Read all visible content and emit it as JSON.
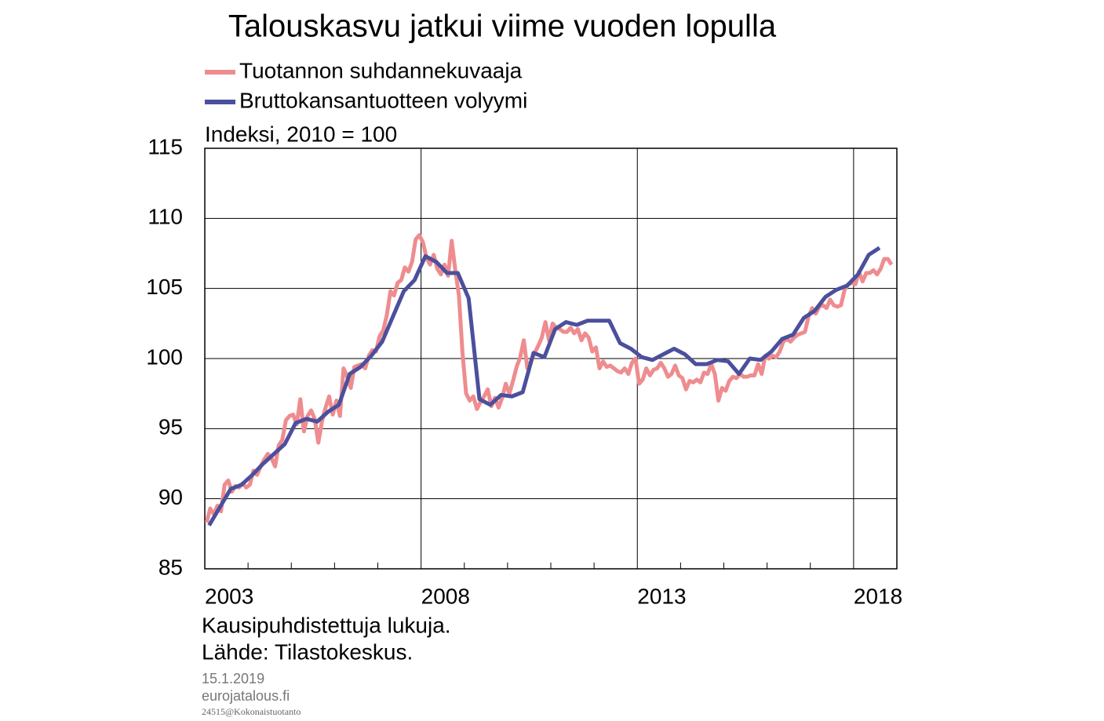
{
  "chart_data": {
    "type": "line",
    "title": "Talouskasvu jatkui viime vuoden lopulla",
    "y_label": "Indeksi, 2010 = 100",
    "notes": [
      "Kausipuhdistettuja lukuja.",
      "Lähde: Tilastokeskus."
    ],
    "xlim": [
      2003,
      2019
    ],
    "xticks": [
      2003,
      2008,
      2013,
      2018
    ],
    "x_minor_ticks": [
      2004,
      2005,
      2006,
      2007,
      2009,
      2010,
      2011,
      2012,
      2014,
      2015,
      2016,
      2017
    ],
    "ylim": [
      85,
      115
    ],
    "yticks": [
      85,
      90,
      95,
      100,
      105,
      110,
      115
    ],
    "grid": true,
    "series": [
      {
        "name": "Tuotannon suhdannekuvaaja",
        "color": "#ee8c8f",
        "x": [
          2003.042,
          2003.125,
          2003.208,
          2003.292,
          2003.375,
          2003.458,
          2003.542,
          2003.625,
          2003.708,
          2003.792,
          2003.875,
          2003.958,
          2004.042,
          2004.125,
          2004.208,
          2004.292,
          2004.375,
          2004.458,
          2004.542,
          2004.625,
          2004.708,
          2004.792,
          2004.875,
          2004.958,
          2005.042,
          2005.125,
          2005.208,
          2005.292,
          2005.375,
          2005.458,
          2005.542,
          2005.625,
          2005.708,
          2005.792,
          2005.875,
          2005.958,
          2006.042,
          2006.125,
          2006.208,
          2006.292,
          2006.375,
          2006.458,
          2006.542,
          2006.625,
          2006.708,
          2006.792,
          2006.875,
          2006.958,
          2007.042,
          2007.125,
          2007.208,
          2007.292,
          2007.375,
          2007.458,
          2007.542,
          2007.625,
          2007.708,
          2007.792,
          2007.875,
          2007.958,
          2008.042,
          2008.125,
          2008.208,
          2008.292,
          2008.375,
          2008.458,
          2008.542,
          2008.625,
          2008.708,
          2008.792,
          2008.875,
          2008.958,
          2009.042,
          2009.125,
          2009.208,
          2009.292,
          2009.375,
          2009.458,
          2009.542,
          2009.625,
          2009.708,
          2009.792,
          2009.875,
          2009.958,
          2010.042,
          2010.125,
          2010.208,
          2010.292,
          2010.375,
          2010.458,
          2010.542,
          2010.625,
          2010.708,
          2010.792,
          2010.875,
          2010.958,
          2011.042,
          2011.125,
          2011.208,
          2011.292,
          2011.375,
          2011.458,
          2011.542,
          2011.625,
          2011.708,
          2011.792,
          2011.875,
          2011.958,
          2012.042,
          2012.125,
          2012.208,
          2012.292,
          2012.375,
          2012.458,
          2012.542,
          2012.625,
          2012.708,
          2012.792,
          2012.875,
          2012.958,
          2013.042,
          2013.125,
          2013.208,
          2013.292,
          2013.375,
          2013.458,
          2013.542,
          2013.625,
          2013.708,
          2013.792,
          2013.875,
          2013.958,
          2014.042,
          2014.125,
          2014.208,
          2014.292,
          2014.375,
          2014.458,
          2014.542,
          2014.625,
          2014.708,
          2014.792,
          2014.875,
          2014.958,
          2015.042,
          2015.125,
          2015.208,
          2015.292,
          2015.375,
          2015.458,
          2015.542,
          2015.625,
          2015.708,
          2015.792,
          2015.875,
          2015.958,
          2016.042,
          2016.125,
          2016.208,
          2016.292,
          2016.375,
          2016.458,
          2016.542,
          2016.625,
          2016.708,
          2016.792,
          2016.875,
          2016.958,
          2017.042,
          2017.125,
          2017.208,
          2017.292,
          2017.375,
          2017.458,
          2017.542,
          2017.625,
          2017.708,
          2017.792,
          2017.875,
          2017.958,
          2018.042,
          2018.125,
          2018.208,
          2018.292,
          2018.375,
          2018.458,
          2018.542,
          2018.625,
          2018.708,
          2018.792,
          2018.875
        ],
        "values": [
          88.3,
          89.3,
          88.9,
          89.5,
          89.1,
          91.0,
          91.3,
          90.5,
          90.9,
          90.8,
          91.1,
          90.8,
          91.0,
          92.0,
          91.7,
          92.3,
          92.8,
          93.2,
          92.9,
          92.3,
          93.8,
          94.2,
          95.6,
          95.9,
          96.0,
          95.3,
          97.1,
          94.8,
          95.9,
          96.3,
          95.7,
          94.0,
          95.5,
          96.5,
          97.3,
          96.0,
          97.0,
          95.9,
          99.3,
          98.7,
          97.9,
          99.4,
          99.5,
          99.6,
          99.3,
          100.2,
          100.6,
          100.5,
          101.6,
          102.0,
          103.1,
          104.8,
          104.5,
          105.4,
          105.6,
          106.5,
          106.2,
          106.9,
          108.5,
          108.8,
          108.3,
          107.2,
          106.7,
          107.4,
          106.4,
          106.0,
          106.7,
          105.9,
          108.4,
          106.3,
          104.5,
          100.4,
          97.5,
          97.0,
          97.3,
          96.4,
          96.9,
          97.3,
          97.8,
          96.6,
          97.2,
          96.5,
          97.2,
          98.2,
          97.5,
          98.4,
          99.4,
          100.1,
          101.3,
          99.3,
          99.8,
          100.4,
          100.9,
          101.5,
          102.6,
          101.3,
          102.5,
          102.2,
          102.1,
          101.9,
          101.9,
          102.2,
          101.8,
          102.1,
          101.3,
          101.8,
          101.5,
          100.5,
          100.8,
          99.3,
          99.8,
          99.4,
          99.5,
          99.3,
          99.1,
          99.0,
          99.3,
          98.9,
          99.7,
          100.0,
          98.2,
          98.5,
          99.3,
          98.8,
          99.2,
          99.3,
          99.7,
          99.3,
          98.7,
          98.9,
          99.5,
          98.8,
          98.6,
          97.8,
          98.4,
          98.3,
          98.5,
          98.3,
          99.0,
          98.9,
          99.6,
          98.9,
          97.0,
          97.9,
          97.7,
          98.4,
          98.7,
          98.6,
          98.9,
          98.7,
          98.7,
          98.8,
          98.8,
          99.6,
          98.9,
          100.2,
          100.0,
          100.2,
          100.1,
          100.5,
          101.2,
          101.4,
          101.2,
          101.5,
          101.7,
          101.8,
          101.9,
          103.0,
          103.6,
          103.2,
          103.7,
          103.8,
          103.6,
          104.2,
          103.8,
          103.7,
          103.8,
          104.9,
          105.3,
          105.4,
          105.3,
          106.2,
          105.5,
          106.1,
          106.1,
          106.3,
          106.0,
          106.4,
          107.1,
          107.1,
          106.7
        ]
      },
      {
        "name": "Bruttokansantuotteen volyymi",
        "color": "#4b4f9c",
        "x": [
          2003.1,
          2003.35,
          2003.6,
          2003.85,
          2004.1,
          2004.35,
          2004.6,
          2004.85,
          2005.1,
          2005.35,
          2005.6,
          2005.85,
          2006.1,
          2006.35,
          2006.6,
          2006.85,
          2007.1,
          2007.35,
          2007.6,
          2007.85,
          2008.1,
          2008.35,
          2008.6,
          2008.85,
          2009.1,
          2009.35,
          2009.6,
          2009.85,
          2010.1,
          2010.35,
          2010.6,
          2010.85,
          2011.1,
          2011.35,
          2011.6,
          2011.85,
          2012.1,
          2012.35,
          2012.6,
          2012.85,
          2013.1,
          2013.35,
          2013.6,
          2013.85,
          2014.1,
          2014.35,
          2014.6,
          2014.85,
          2015.1,
          2015.35,
          2015.6,
          2015.85,
          2016.1,
          2016.35,
          2016.6,
          2016.85,
          2017.1,
          2017.35,
          2017.6,
          2017.85,
          2018.1,
          2018.35,
          2018.6
        ],
        "values": [
          88.1,
          89.4,
          90.7,
          91.0,
          91.7,
          92.5,
          93.2,
          93.9,
          95.4,
          95.7,
          95.5,
          96.2,
          96.7,
          98.9,
          99.4,
          100.2,
          101.2,
          103.0,
          104.8,
          105.6,
          107.3,
          106.9,
          106.1,
          106.1,
          104.3,
          97.1,
          96.7,
          97.4,
          97.3,
          97.6,
          100.4,
          100.1,
          102.1,
          102.6,
          102.4,
          102.7,
          102.7,
          102.7,
          101.1,
          100.7,
          100.1,
          99.9,
          100.3,
          100.7,
          100.3,
          99.6,
          99.6,
          99.9,
          99.8,
          98.9,
          100.0,
          99.9,
          100.5,
          101.4,
          101.7,
          102.9,
          103.4,
          104.4,
          104.9,
          105.2,
          106.0,
          107.4,
          107.9
        ]
      }
    ]
  },
  "footer": {
    "date": "15.1.2019",
    "site": "eurojatalous.fi",
    "code": "24515@Kokonaistuotanto"
  }
}
